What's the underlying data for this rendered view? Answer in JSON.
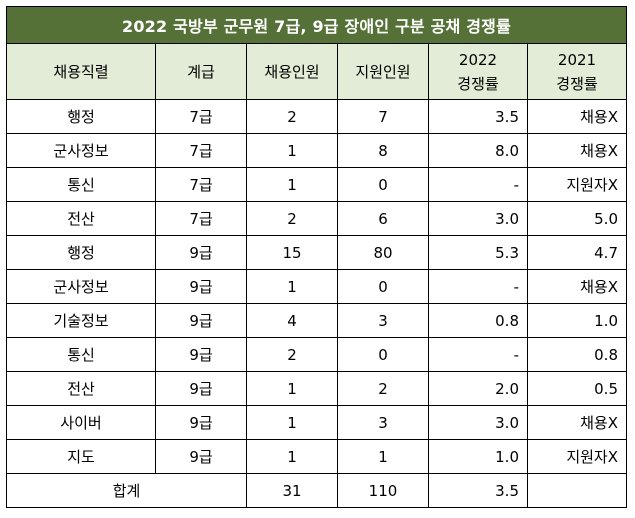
{
  "title": "2022 국방부 군무원 7급, 9급 장애인 구분 공채 경쟁률",
  "headers": {
    "job": "채용직렬",
    "grade": "계급",
    "hires": "채용인원",
    "applicants": "지원인원",
    "rate2022_line1": "2022",
    "rate2022_line2": "경쟁률",
    "rate2021_line1": "2021",
    "rate2021_line2": "경쟁률"
  },
  "rows": [
    {
      "job": "행정",
      "grade": "7급",
      "hires": "2",
      "applicants": "7",
      "rate2022": "3.5",
      "rate2021": "채용X"
    },
    {
      "job": "군사정보",
      "grade": "7급",
      "hires": "1",
      "applicants": "8",
      "rate2022": "8.0",
      "rate2021": "채용X"
    },
    {
      "job": "통신",
      "grade": "7급",
      "hires": "1",
      "applicants": "0",
      "rate2022": "-",
      "rate2021": "지원자X"
    },
    {
      "job": "전산",
      "grade": "7급",
      "hires": "2",
      "applicants": "6",
      "rate2022": "3.0",
      "rate2021": "5.0"
    },
    {
      "job": "행정",
      "grade": "9급",
      "hires": "15",
      "applicants": "80",
      "rate2022": "5.3",
      "rate2021": "4.7"
    },
    {
      "job": "군사정보",
      "grade": "9급",
      "hires": "1",
      "applicants": "0",
      "rate2022": "-",
      "rate2021": "채용X"
    },
    {
      "job": "기술정보",
      "grade": "9급",
      "hires": "4",
      "applicants": "3",
      "rate2022": "0.8",
      "rate2021": "1.0"
    },
    {
      "job": "통신",
      "grade": "9급",
      "hires": "2",
      "applicants": "0",
      "rate2022": "-",
      "rate2021": "0.8"
    },
    {
      "job": "전산",
      "grade": "9급",
      "hires": "1",
      "applicants": "2",
      "rate2022": "2.0",
      "rate2021": "0.5"
    },
    {
      "job": "사이버",
      "grade": "9급",
      "hires": "1",
      "applicants": "3",
      "rate2022": "3.0",
      "rate2021": "채용X"
    },
    {
      "job": "지도",
      "grade": "9급",
      "hires": "1",
      "applicants": "1",
      "rate2022": "1.0",
      "rate2021": "지원자X"
    }
  ],
  "total": {
    "label": "합계",
    "hires": "31",
    "applicants": "110",
    "rate2022": "3.5",
    "rate2021": ""
  }
}
